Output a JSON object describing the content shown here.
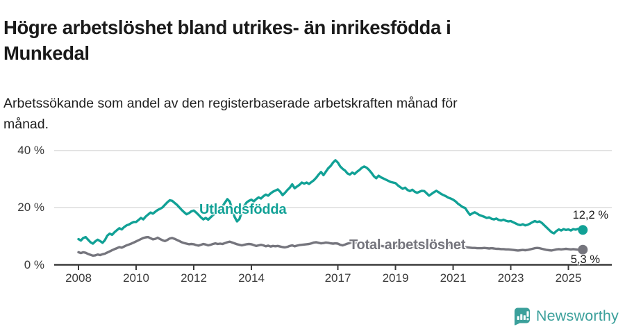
{
  "header": {
    "title": "Högre arbetslöshet bland utrikes- än inrikesfödda i\nMunkedal",
    "subtitle": "Arbetssökande som andel av den registerbaserade arbetskraften månad för\nmånad."
  },
  "colors": {
    "teal": "#11A196",
    "gray": "#75757D",
    "axis": "#3B3B3B",
    "grid": "#D8D8D8",
    "text": "#1A1A1A",
    "brand_teal": "#3BA09B"
  },
  "chart_data": {
    "type": "line",
    "title": "Högre arbetslöshet bland utrikes- än inrikesfödda i Munkedal",
    "subtitle": "Arbetssökande som andel av den registerbaserade arbetskraften månad för månad.",
    "x_unit": "month",
    "x_start": "2008-01",
    "x_end": "2025-07",
    "ylim": [
      0,
      44
    ],
    "y_ticks": {
      "values": [
        0,
        20,
        40
      ],
      "labels": [
        "0 %",
        "20 %",
        "40 %"
      ]
    },
    "x_ticks": {
      "values": [
        2008,
        2010,
        2012,
        2014,
        2017,
        2019,
        2021,
        2023,
        2025
      ],
      "labels": [
        "2008",
        "2010",
        "2012",
        "2014",
        "2017",
        "2019",
        "2021",
        "2023",
        "2025"
      ]
    },
    "grid": "horizontal-only",
    "series": [
      {
        "name": "Utlandsfödda",
        "color": "#11A196",
        "end_label": "12,2 %",
        "end_value": 12.2,
        "values": [
          9.0,
          8.5,
          9.4,
          9.7,
          8.8,
          7.9,
          7.4,
          8.2,
          8.8,
          8.3,
          7.7,
          8.6,
          10.2,
          10.9,
          10.5,
          11.4,
          12.1,
          12.8,
          12.4,
          13.2,
          13.8,
          14.1,
          14.6,
          15.0,
          15.0,
          15.7,
          16.4,
          15.9,
          16.9,
          17.6,
          18.3,
          17.9,
          18.6,
          19.2,
          19.6,
          20.1,
          21.0,
          21.9,
          22.6,
          22.4,
          21.7,
          21.0,
          20.1,
          19.2,
          18.4,
          17.7,
          18.1,
          18.7,
          19.0,
          18.3,
          17.5,
          16.6,
          15.9,
          16.4,
          15.8,
          16.6,
          17.4,
          18.0,
          18.6,
          19.2,
          20.5,
          21.8,
          23.0,
          22.1,
          19.5,
          16.8,
          15.2,
          16.0,
          18.5,
          20.6,
          21.8,
          22.4,
          22.8,
          22.2,
          23.0,
          23.6,
          23.2,
          24.0,
          24.6,
          24.2,
          25.0,
          25.6,
          26.0,
          26.4,
          25.6,
          24.4,
          25.2,
          26.2,
          27.0,
          28.2,
          26.8,
          27.4,
          28.0,
          28.8,
          28.4,
          28.8,
          28.3,
          29.0,
          29.6,
          30.5,
          31.6,
          32.5,
          31.4,
          32.6,
          33.8,
          34.6,
          35.8,
          36.6,
          35.8,
          34.4,
          33.6,
          33.0,
          32.0,
          31.6,
          32.3,
          31.8,
          32.6,
          33.2,
          34.0,
          34.4,
          34.0,
          33.2,
          32.2,
          31.0,
          30.3,
          31.2,
          30.6,
          30.2,
          29.8,
          29.4,
          29.0,
          28.8,
          28.6,
          27.8,
          27.2,
          26.6,
          27.0,
          26.2,
          25.8,
          26.3,
          25.6,
          25.2,
          25.6,
          25.9,
          25.8,
          25.0,
          24.2,
          24.8,
          25.4,
          25.9,
          25.4,
          24.8,
          24.4,
          24.0,
          23.5,
          23.2,
          22.8,
          22.2,
          21.4,
          20.8,
          20.2,
          19.9,
          18.6,
          17.5,
          18.0,
          18.4,
          17.9,
          17.4,
          17.1,
          16.8,
          16.4,
          16.6,
          16.1,
          15.9,
          16.2,
          15.7,
          15.5,
          15.8,
          15.4,
          15.2,
          15.3,
          14.9,
          14.5,
          14.1,
          13.9,
          14.2,
          13.8,
          14.0,
          14.4,
          14.9,
          15.3,
          15.0,
          15.2,
          14.6,
          13.8,
          13.0,
          12.2,
          11.4,
          11.0,
          11.8,
          12.4,
          12.0,
          12.5,
          12.2,
          12.4,
          12.0,
          12.5,
          12.3,
          12.6,
          12.1,
          12.2
        ]
      },
      {
        "name": "Total arbetslöshet",
        "color": "#75757D",
        "end_label": "5,3 %",
        "end_value": 5.3,
        "values": [
          4.4,
          4.1,
          4.4,
          4.2,
          3.8,
          3.5,
          3.2,
          3.3,
          3.6,
          3.4,
          3.7,
          3.9,
          4.3,
          4.7,
          5.1,
          5.5,
          5.8,
          6.2,
          6.0,
          6.4,
          6.8,
          7.1,
          7.4,
          7.8,
          8.2,
          8.6,
          9.0,
          9.4,
          9.6,
          9.7,
          9.3,
          8.9,
          9.1,
          9.5,
          9.0,
          8.6,
          8.3,
          8.7,
          9.2,
          9.4,
          9.1,
          8.7,
          8.3,
          7.9,
          7.6,
          7.4,
          7.2,
          7.3,
          7.2,
          6.9,
          6.7,
          7.0,
          7.3,
          7.1,
          6.8,
          7.0,
          7.3,
          7.5,
          7.3,
          7.4,
          7.3,
          7.6,
          7.9,
          8.1,
          7.8,
          7.5,
          7.2,
          7.0,
          6.8,
          7.0,
          7.2,
          7.3,
          7.2,
          6.9,
          6.6,
          6.8,
          7.0,
          6.8,
          6.5,
          6.7,
          6.4,
          6.6,
          6.5,
          6.6,
          6.4,
          6.2,
          6.1,
          6.3,
          6.6,
          6.8,
          6.5,
          6.7,
          6.9,
          7.0,
          7.1,
          7.2,
          7.3,
          7.5,
          7.8,
          7.9,
          7.7,
          7.5,
          7.6,
          7.8,
          7.7,
          7.5,
          7.4,
          7.5,
          7.4,
          7.0,
          6.8,
          7.1,
          7.4,
          7.6,
          7.9,
          7.7,
          7.5,
          7.6,
          7.7,
          7.5,
          7.3,
          7.1,
          6.9,
          6.7,
          6.6,
          6.8,
          6.6,
          6.5,
          6.4,
          6.5,
          6.6,
          6.7,
          6.6,
          6.5,
          6.4,
          6.3,
          6.4,
          6.5,
          6.4,
          6.3,
          6.4,
          6.5,
          6.6,
          6.7,
          6.8,
          6.9,
          7.0,
          7.2,
          7.3,
          7.4,
          7.3,
          7.2,
          7.1,
          7.0,
          6.9,
          6.8,
          6.7,
          6.6,
          6.5,
          6.4,
          6.3,
          6.2,
          6.1,
          6.0,
          5.9,
          5.9,
          5.8,
          5.8,
          5.8,
          5.9,
          5.8,
          5.7,
          5.8,
          5.7,
          5.6,
          5.6,
          5.5,
          5.5,
          5.4,
          5.4,
          5.3,
          5.2,
          5.1,
          5.0,
          5.1,
          5.2,
          5.1,
          5.2,
          5.4,
          5.6,
          5.8,
          5.9,
          5.8,
          5.6,
          5.4,
          5.2,
          5.1,
          5.0,
          5.2,
          5.4,
          5.5,
          5.4,
          5.5,
          5.6,
          5.5,
          5.4,
          5.5,
          5.4,
          5.3,
          5.2,
          5.3
        ]
      }
    ],
    "annotations": {
      "series_label_1": "Utlandsfödda",
      "series_label_2": "Total arbetslöshet",
      "end_label_1": "12,2 %",
      "end_label_2": "5,3 %"
    }
  },
  "footer": {
    "brand": "Newsworthy",
    "logo_icon": "bar-chart-speech-bubble"
  }
}
